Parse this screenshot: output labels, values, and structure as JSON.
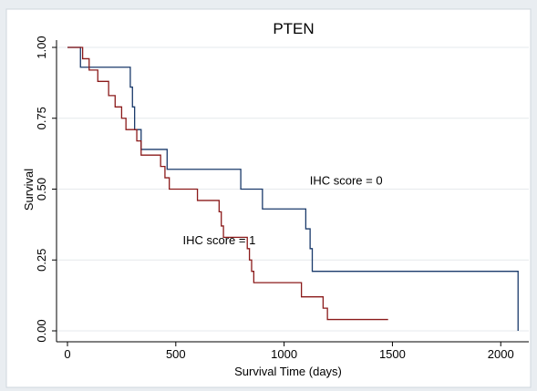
{
  "chart_data": {
    "type": "line",
    "title": "PTEN",
    "xlabel": "Survival Time (days)",
    "ylabel": "Survival",
    "xlim": [
      0,
      2100
    ],
    "ylim": [
      0,
      1
    ],
    "x_ticks": [
      0,
      500,
      1000,
      1500,
      2000
    ],
    "y_ticks": [
      0,
      0.25,
      0.5,
      0.75,
      1
    ],
    "x_tick_labels": [
      "0",
      "500",
      "1000",
      "1500",
      "2000"
    ],
    "y_tick_labels": [
      "0.00",
      "0.25",
      "0.50",
      "0.75",
      "1.00"
    ],
    "grid": "horizontal",
    "step": true,
    "series": [
      {
        "name": "IHC score = 0",
        "color": "#1a3a6b",
        "x": [
          0,
          60,
          290,
          300,
          310,
          320,
          340,
          460,
          800,
          900,
          1100,
          1120,
          1130,
          2080,
          2080
        ],
        "y": [
          1,
          0.93,
          0.86,
          0.79,
          0.71,
          0.71,
          0.64,
          0.57,
          0.5,
          0.43,
          0.36,
          0.29,
          0.21,
          0.21,
          0
        ]
      },
      {
        "name": "IHC score = 1",
        "color": "#8b1a1a",
        "x": [
          0,
          70,
          100,
          140,
          190,
          220,
          250,
          270,
          320,
          340,
          430,
          450,
          470,
          600,
          700,
          710,
          720,
          830,
          840,
          850,
          860,
          870,
          1080,
          1150,
          1180,
          1200,
          1480
        ],
        "y": [
          1,
          0.96,
          0.92,
          0.88,
          0.83,
          0.79,
          0.75,
          0.71,
          0.67,
          0.62,
          0.58,
          0.54,
          0.5,
          0.46,
          0.42,
          0.37,
          0.33,
          0.29,
          0.25,
          0.21,
          0.17,
          0.17,
          0.12,
          0.12,
          0.08,
          0.04,
          0.04
        ]
      }
    ],
    "annotations": [
      {
        "text": "IHC score = 0",
        "series": 0,
        "x": 1110,
        "y": 0.5
      },
      {
        "text": "IHC score = 1",
        "series": 1,
        "x": 860,
        "y": 0.29
      }
    ]
  }
}
